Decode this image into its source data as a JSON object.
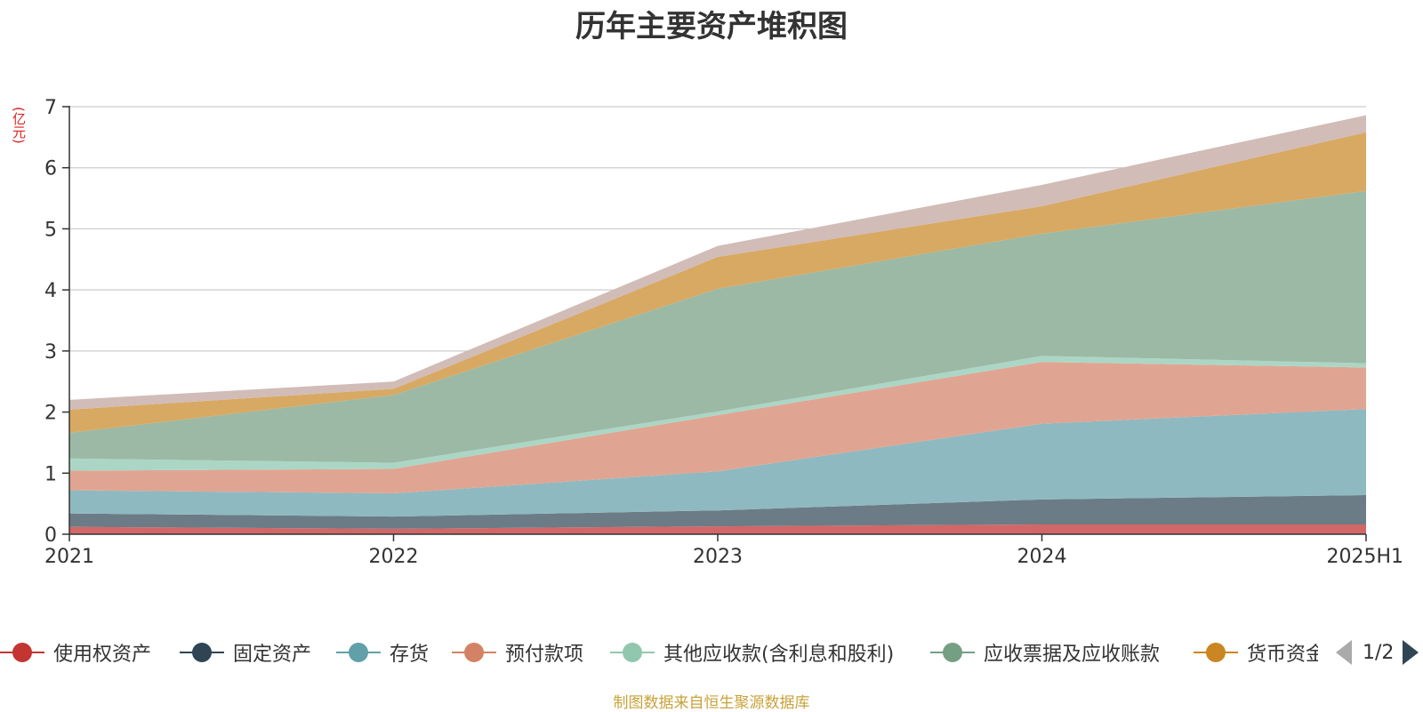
{
  "title": "历年主要资产堆积图",
  "y_unit": "(亿元)",
  "source": "制图数据来自恒生聚源数据库",
  "legend_pager": {
    "text": "1/2"
  },
  "colors": {
    "使用权资产": "#d26767",
    "固定资产": "#6b7c86",
    "存货": "#8fb9c0",
    "预付款项": "#e0a592",
    "其他应收款(含利息和股利)": "#abd6c5",
    "应收票据及应收账款": "#9cb9a5",
    "货币资金": "#d8a962",
    "top_band": "#d1bcb7"
  },
  "legend": [
    {
      "label": "使用权资产",
      "color": "#c23531"
    },
    {
      "label": "固定资产",
      "color": "#2f4554"
    },
    {
      "label": "存货",
      "color": "#61a0a8"
    },
    {
      "label": "预付款项",
      "color": "#d48265"
    },
    {
      "label": "其他应收款(含利息和股利)",
      "color": "#91c7ae"
    },
    {
      "label": "应收票据及应收账款",
      "color": "#749f83"
    },
    {
      "label": "货币资金",
      "color": "#ca8622"
    }
  ],
  "chart_data": {
    "type": "area",
    "stacked": true,
    "title": "历年主要资产堆积图",
    "ylabel": "(亿元)",
    "x": [
      "2021",
      "2022",
      "2023",
      "2024",
      "2025H1"
    ],
    "ylim": [
      0,
      7
    ],
    "yticks": [
      0,
      1,
      2,
      3,
      4,
      5,
      6,
      7
    ],
    "grid": true,
    "legend_position": "bottom",
    "series": [
      {
        "name": "使用权资产",
        "values": [
          0.12,
          0.09,
          0.13,
          0.16,
          0.16
        ]
      },
      {
        "name": "固定资产",
        "values": [
          0.22,
          0.2,
          0.26,
          0.41,
          0.48
        ]
      },
      {
        "name": "存货",
        "values": [
          0.38,
          0.38,
          0.64,
          1.24,
          1.41
        ]
      },
      {
        "name": "预付款项",
        "values": [
          0.32,
          0.4,
          0.92,
          1.01,
          0.68
        ]
      },
      {
        "name": "其他应收款(含利息和股利)",
        "values": [
          0.2,
          0.1,
          0.06,
          0.1,
          0.07
        ]
      },
      {
        "name": "应收票据及应收账款",
        "values": [
          0.42,
          1.11,
          2.01,
          2.0,
          2.82
        ]
      },
      {
        "name": "货币资金",
        "values": [
          0.38,
          0.1,
          0.52,
          0.45,
          0.96
        ]
      },
      {
        "values": [
          0.16,
          0.12,
          0.18,
          0.35,
          0.28
        ]
      }
    ]
  }
}
